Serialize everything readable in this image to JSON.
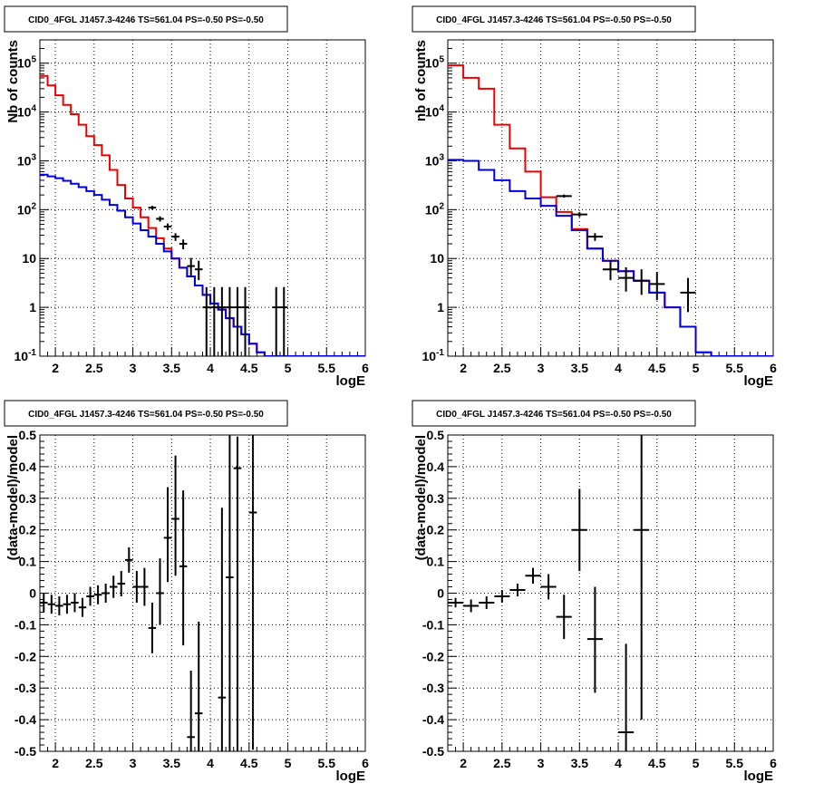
{
  "colors": {
    "data": "#000000",
    "model_total": "#ee0000",
    "model_component": "#0000dd",
    "grid": "#000000"
  },
  "chart_data": [
    {
      "type": "line",
      "title": "CID0_4FGL J1457.3-4246 TS=561.04 PS=-0.50 PS=-0.50",
      "xlabel": "logE",
      "ylabel": "Nb of counts",
      "xscale": "linear",
      "yscale": "log",
      "xlim": [
        1.8,
        6.0
      ],
      "ylim": [
        0.1,
        300000
      ],
      "grid": true,
      "x_ticks": [
        "2",
        "2.5",
        "3",
        "3.5",
        "4",
        "4.5",
        "5",
        "5.5",
        "6"
      ],
      "x_tick_values": [
        2,
        2.5,
        3,
        3.5,
        4,
        4.5,
        5,
        5.5,
        6
      ],
      "y_ticks": [
        "10^-1",
        "1",
        "10",
        "10^2",
        "10^3",
        "10^4",
        "10^5"
      ],
      "y_tick_values": [
        0.1,
        1,
        10,
        100,
        1000,
        10000,
        100000
      ],
      "bin_edges": [
        1.8,
        1.9,
        2.0,
        2.1,
        2.2,
        2.3,
        2.4,
        2.5,
        2.6,
        2.7,
        2.8,
        2.9,
        3.0,
        3.1,
        3.2,
        3.3,
        3.4,
        3.5,
        3.6,
        3.7,
        3.8,
        3.9,
        4.0,
        4.1,
        4.2,
        4.3,
        4.4,
        4.5,
        4.6,
        4.7,
        4.8,
        4.9,
        5.0,
        5.1,
        5.2,
        5.3,
        5.4,
        5.5,
        5.6,
        5.7,
        5.8,
        5.9,
        6.0
      ],
      "series": [
        {
          "values": [
            55000,
            35000,
            22000,
            14000,
            9000,
            5500,
            3200,
            2100,
            1300,
            650,
            320,
            170,
            110,
            70,
            42,
            26,
            16,
            10,
            6.5,
            4.3,
            2.8,
            1.8,
            1.2,
            0.9,
            0.6,
            0.4,
            0.28,
            0.18,
            0.12,
            0.1,
            0.1,
            0.1,
            0.1,
            0.1,
            0.1,
            0.1,
            0.1,
            0.1,
            0.1,
            0.1,
            0.1,
            0.1
          ]
        },
        {
          "values": [
            520,
            480,
            440,
            390,
            340,
            290,
            240,
            200,
            160,
            125,
            95,
            70,
            52,
            38,
            28,
            20,
            14,
            10,
            6.5,
            4.3,
            2.8,
            1.8,
            1.2,
            0.9,
            0.6,
            0.4,
            0.28,
            0.18,
            0.12,
            0.1,
            0.1,
            0.1,
            0.1,
            0.1,
            0.1,
            0.1,
            0.1,
            0.1,
            0.1,
            0.1,
            0.1,
            0.1
          ]
        }
      ],
      "points": [
        {
          "x": 3.25,
          "y": 110,
          "yerr": [
            10,
            10
          ],
          "xerr": 0.05
        },
        {
          "x": 3.35,
          "y": 65,
          "yerr": [
            8,
            8
          ],
          "xerr": 0.05
        },
        {
          "x": 3.45,
          "y": 45,
          "yerr": [
            7,
            7
          ],
          "xerr": 0.05
        },
        {
          "x": 3.55,
          "y": 28,
          "yerr": [
            5,
            5
          ],
          "xerr": 0.05
        },
        {
          "x": 3.65,
          "y": 20,
          "yerr": [
            4.5,
            4.5
          ],
          "xerr": 0.05
        },
        {
          "x": 3.75,
          "y": 7,
          "yerr": [
            2.6,
            3.3
          ],
          "xerr": 0.05
        },
        {
          "x": 3.85,
          "y": 6,
          "yerr": [
            2.4,
            3.0
          ],
          "xerr": 0.05
        },
        {
          "x": 3.95,
          "y": 1,
          "yerr": [
            0.9,
            1.6
          ],
          "xerr": 0.05
        },
        {
          "x": 4.05,
          "y": 1,
          "yerr": [
            0.9,
            1.6
          ],
          "xerr": 0.05
        },
        {
          "x": 4.15,
          "y": 1,
          "yerr": [
            0.9,
            1.6
          ],
          "xerr": 0.05
        },
        {
          "x": 4.25,
          "y": 1,
          "yerr": [
            0.9,
            1.6
          ],
          "xerr": 0.05
        },
        {
          "x": 4.35,
          "y": 1,
          "yerr": [
            0.9,
            1.6
          ],
          "xerr": 0.05
        },
        {
          "x": 4.45,
          "y": 1,
          "yerr": [
            0.9,
            1.6
          ],
          "xerr": 0.05
        },
        {
          "x": 4.85,
          "y": 1,
          "yerr": [
            0.9,
            1.6
          ],
          "xerr": 0.05
        },
        {
          "x": 4.95,
          "y": 1,
          "yerr": [
            0.9,
            1.6
          ],
          "xerr": 0.05
        }
      ]
    },
    {
      "type": "line",
      "title": "CID0_4FGL J1457.3-4246 TS=561.04 PS=-0.50 PS=-0.50",
      "xlabel": "logE",
      "ylabel": "nb of counts",
      "xscale": "linear",
      "yscale": "log",
      "xlim": [
        1.8,
        6.0
      ],
      "ylim": [
        0.1,
        300000
      ],
      "grid": true,
      "x_ticks": [
        "2",
        "2.5",
        "3",
        "3.5",
        "4",
        "4.5",
        "5",
        "5.5",
        "6"
      ],
      "x_tick_values": [
        2,
        2.5,
        3,
        3.5,
        4,
        4.5,
        5,
        5.5,
        6
      ],
      "y_ticks": [
        "10^-1",
        "1",
        "10",
        "10^2",
        "10^3",
        "10^4",
        "10^5"
      ],
      "y_tick_values": [
        0.1,
        1,
        10,
        100,
        1000,
        10000,
        100000
      ],
      "bin_edges": [
        1.8,
        2.0,
        2.2,
        2.4,
        2.6,
        2.8,
        3.0,
        3.2,
        3.4,
        3.6,
        3.8,
        4.0,
        4.2,
        4.4,
        4.6,
        4.8,
        5.0,
        5.2,
        5.4,
        5.6,
        5.8,
        6.0
      ],
      "series": [
        {
          "values": [
            90000,
            50000,
            30000,
            5500,
            1800,
            600,
            180,
            90,
            40,
            16,
            9,
            5.5,
            3.5,
            2,
            1,
            0.4,
            0.12,
            0.1,
            0.1,
            0.1,
            0.1
          ]
        },
        {
          "values": [
            1050,
            1000,
            650,
            400,
            240,
            170,
            120,
            75,
            38,
            16,
            9,
            5.5,
            3.5,
            2,
            1,
            0.4,
            0.12,
            0.1,
            0.1,
            0.1,
            0.1
          ]
        }
      ],
      "points": [
        {
          "x": 3.3,
          "y": 190,
          "yerr": [
            14,
            14
          ],
          "xerr": 0.1
        },
        {
          "x": 3.5,
          "y": 80,
          "yerr": [
            9,
            9
          ],
          "xerr": 0.1
        },
        {
          "x": 3.7,
          "y": 28,
          "yerr": [
            5,
            5
          ],
          "xerr": 0.1
        },
        {
          "x": 3.9,
          "y": 6,
          "yerr": [
            2.4,
            3.0
          ],
          "xerr": 0.1
        },
        {
          "x": 4.1,
          "y": 4,
          "yerr": [
            1.9,
            2.6
          ],
          "xerr": 0.1
        },
        {
          "x": 4.3,
          "y": 3.5,
          "yerr": [
            1.7,
            2.5
          ],
          "xerr": 0.1
        },
        {
          "x": 4.5,
          "y": 3,
          "yerr": [
            1.6,
            2.3
          ],
          "xerr": 0.1
        },
        {
          "x": 4.9,
          "y": 2,
          "yerr": [
            1.2,
            2.0
          ],
          "xerr": 0.1
        }
      ]
    },
    {
      "type": "scatter",
      "title": "CID0_4FGL J1457.3-4246 TS=561.04 PS=-0.50 PS=-0.50",
      "xlabel": "logE",
      "ylabel": "(data-model)/model",
      "xscale": "linear",
      "yscale": "linear",
      "xlim": [
        1.8,
        6.0
      ],
      "ylim": [
        -0.5,
        0.5
      ],
      "grid": true,
      "x_ticks": [
        "2",
        "2.5",
        "3",
        "3.5",
        "4",
        "4.5",
        "5",
        "5.5",
        "6"
      ],
      "x_tick_values": [
        2,
        2.5,
        3,
        3.5,
        4,
        4.5,
        5,
        5.5,
        6
      ],
      "y_ticks": [
        "-0.5",
        "-0.4",
        "-0.3",
        "-0.2",
        "-0.1",
        "0",
        "0.1",
        "0.2",
        "0.3",
        "0.4",
        "0.5"
      ],
      "y_tick_values": [
        -0.5,
        -0.4,
        -0.3,
        -0.2,
        -0.1,
        0,
        0.1,
        0.2,
        0.3,
        0.4,
        0.5
      ],
      "points": [
        {
          "x": 1.85,
          "y": -0.03,
          "yerr": [
            0.03,
            0.03
          ],
          "xerr": 0.05
        },
        {
          "x": 1.95,
          "y": -0.035,
          "yerr": [
            0.03,
            0.03
          ],
          "xerr": 0.05
        },
        {
          "x": 2.05,
          "y": -0.04,
          "yerr": [
            0.03,
            0.03
          ],
          "xerr": 0.05
        },
        {
          "x": 2.15,
          "y": -0.035,
          "yerr": [
            0.03,
            0.03
          ],
          "xerr": 0.05
        },
        {
          "x": 2.25,
          "y": -0.03,
          "yerr": [
            0.03,
            0.03
          ],
          "xerr": 0.05
        },
        {
          "x": 2.35,
          "y": -0.045,
          "yerr": [
            0.03,
            0.03
          ],
          "xerr": 0.05
        },
        {
          "x": 2.45,
          "y": -0.01,
          "yerr": [
            0.03,
            0.03
          ],
          "xerr": 0.05
        },
        {
          "x": 2.55,
          "y": -0.005,
          "yerr": [
            0.03,
            0.03
          ],
          "xerr": 0.05
        },
        {
          "x": 2.65,
          "y": 0.0,
          "yerr": [
            0.03,
            0.03
          ],
          "xerr": 0.05
        },
        {
          "x": 2.75,
          "y": 0.02,
          "yerr": [
            0.035,
            0.035
          ],
          "xerr": 0.05
        },
        {
          "x": 2.85,
          "y": 0.03,
          "yerr": [
            0.04,
            0.04
          ],
          "xerr": 0.05
        },
        {
          "x": 2.95,
          "y": 0.105,
          "yerr": [
            0.04,
            0.04
          ],
          "xerr": 0.05
        },
        {
          "x": 3.05,
          "y": 0.02,
          "yerr": [
            0.05,
            0.05
          ],
          "xerr": 0.05
        },
        {
          "x": 3.15,
          "y": 0.02,
          "yerr": [
            0.06,
            0.06
          ],
          "xerr": 0.05
        },
        {
          "x": 3.25,
          "y": -0.11,
          "yerr": [
            0.08,
            0.08
          ],
          "xerr": 0.05
        },
        {
          "x": 3.35,
          "y": 0.0,
          "yerr": [
            0.1,
            0.11
          ],
          "xerr": 0.05
        },
        {
          "x": 3.45,
          "y": 0.175,
          "yerr": [
            0.14,
            0.16
          ],
          "xerr": 0.05
        },
        {
          "x": 3.55,
          "y": 0.235,
          "yerr": [
            0.18,
            0.2
          ],
          "xerr": 0.05
        },
        {
          "x": 3.65,
          "y": 0.085,
          "yerr": [
            0.25,
            0.24
          ],
          "xerr": 0.05
        },
        {
          "x": 3.75,
          "y": -0.455,
          "yerr": [
            0.045,
            0.21
          ],
          "xerr": 0.05
        },
        {
          "x": 3.85,
          "y": -0.38,
          "yerr": [
            0.12,
            0.29
          ],
          "xerr": 0.05
        },
        {
          "x": 4.15,
          "y": -0.33,
          "yerr": [
            0.17,
            0.6
          ],
          "xerr": 0.05
        },
        {
          "x": 4.25,
          "y": 0.05,
          "yerr": [
            0.55,
            0.45
          ],
          "xerr": 0.05
        },
        {
          "x": 4.35,
          "y": 0.395,
          "yerr": [
            0.9,
            0.1
          ],
          "xerr": 0.05
        },
        {
          "x": 4.55,
          "y": 0.255,
          "yerr": [
            0.75,
            0.25
          ],
          "xerr": 0.05
        }
      ]
    },
    {
      "type": "scatter",
      "title": "CID0_4FGL J1457.3-4246 TS=561.04 PS=-0.50 PS=-0.50",
      "xlabel": "logE",
      "ylabel": "(data-model)/model",
      "xscale": "linear",
      "yscale": "linear",
      "xlim": [
        1.8,
        6.0
      ],
      "ylim": [
        -0.5,
        0.5
      ],
      "grid": true,
      "x_ticks": [
        "2",
        "2.5",
        "3",
        "3.5",
        "4",
        "4.5",
        "5",
        "5.5",
        "6"
      ],
      "x_tick_values": [
        2,
        2.5,
        3,
        3.5,
        4,
        4.5,
        5,
        5.5,
        6
      ],
      "y_ticks": [
        "-0.5",
        "-0.4",
        "-0.3",
        "-0.2",
        "-0.1",
        "0",
        "0.1",
        "0.2",
        "0.3",
        "0.4",
        "0.5"
      ],
      "y_tick_values": [
        -0.5,
        -0.4,
        -0.3,
        -0.2,
        -0.1,
        0,
        0.1,
        0.2,
        0.3,
        0.4,
        0.5
      ],
      "points": [
        {
          "x": 1.9,
          "y": -0.03,
          "yerr": [
            0.015,
            0.015
          ],
          "xerr": 0.1
        },
        {
          "x": 2.1,
          "y": -0.04,
          "yerr": [
            0.02,
            0.02
          ],
          "xerr": 0.1
        },
        {
          "x": 2.3,
          "y": -0.03,
          "yerr": [
            0.02,
            0.02
          ],
          "xerr": 0.1
        },
        {
          "x": 2.5,
          "y": -0.01,
          "yerr": [
            0.02,
            0.02
          ],
          "xerr": 0.1
        },
        {
          "x": 2.7,
          "y": 0.01,
          "yerr": [
            0.02,
            0.02
          ],
          "xerr": 0.1
        },
        {
          "x": 2.9,
          "y": 0.055,
          "yerr": [
            0.025,
            0.025
          ],
          "xerr": 0.1
        },
        {
          "x": 3.1,
          "y": 0.02,
          "yerr": [
            0.04,
            0.04
          ],
          "xerr": 0.1
        },
        {
          "x": 3.3,
          "y": -0.075,
          "yerr": [
            0.07,
            0.07
          ],
          "xerr": 0.1
        },
        {
          "x": 3.5,
          "y": 0.2,
          "yerr": [
            0.13,
            0.13
          ],
          "xerr": 0.1
        },
        {
          "x": 3.7,
          "y": -0.145,
          "yerr": [
            0.17,
            0.165
          ],
          "xerr": 0.1
        },
        {
          "x": 4.1,
          "y": -0.44,
          "yerr": [
            0.06,
            0.28
          ],
          "xerr": 0.1
        },
        {
          "x": 4.3,
          "y": 0.2,
          "yerr": [
            0.6,
            0.3
          ],
          "xerr": 0.1
        }
      ]
    }
  ]
}
